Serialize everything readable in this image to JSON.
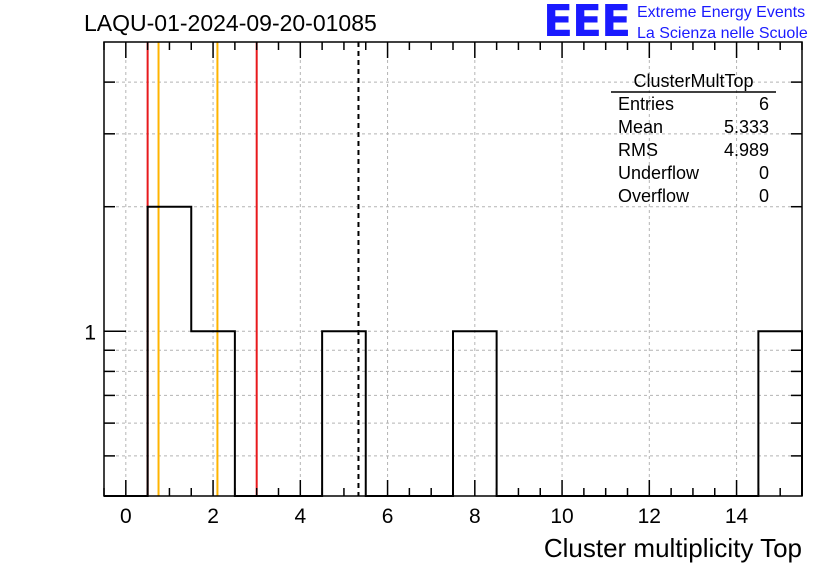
{
  "header": {
    "title": "LAQU-01-2024-09-20-01085",
    "logo_text": "EEE",
    "logo_line1": "Extreme Energy Events",
    "logo_line2": "La Scienza nelle Scuole"
  },
  "stats_box": {
    "name": "ClusterMultTop",
    "rows": [
      {
        "label": "Entries",
        "value": "6"
      },
      {
        "label": "Mean",
        "value": "5.333"
      },
      {
        "label": "RMS",
        "value": "4.989"
      },
      {
        "label": "Underflow",
        "value": "0"
      },
      {
        "label": "Overflow",
        "value": "0"
      }
    ]
  },
  "colors": {
    "red": "#e8191c",
    "orange": "#ffb400",
    "grid": "#b4b4b4",
    "hist": "#000000"
  },
  "chart_data": {
    "type": "histogram",
    "title": "LAQU-01-2024-09-20-01085",
    "xlabel": "Cluster multiplicity Top",
    "ylabel": "",
    "xlim": [
      -0.5,
      15.5
    ],
    "ylim": [
      0.4,
      5
    ],
    "yscale": "log",
    "bin_width": 1,
    "bin_centers": [
      0,
      1,
      2,
      3,
      4,
      5,
      6,
      7,
      8,
      9,
      10,
      11,
      12,
      13,
      14,
      15
    ],
    "counts": [
      0,
      2,
      1,
      0,
      0,
      1,
      0,
      0,
      1,
      0,
      0,
      0,
      0,
      0,
      0,
      1
    ],
    "x_ticks": [
      0,
      2,
      4,
      6,
      8,
      10,
      12,
      14
    ],
    "x_tick_labels": [
      "0",
      "2",
      "4",
      "6",
      "8",
      "10",
      "12",
      "14"
    ],
    "y_major_ticks": [
      1
    ],
    "y_major_tick_labels": [
      "1"
    ],
    "y_minor_ticks": [
      0.5,
      0.6,
      0.7,
      0.8,
      0.9,
      2,
      3,
      4
    ],
    "grid": true,
    "vertical_lines": [
      {
        "x": 0.5,
        "color": "red",
        "style": "solid"
      },
      {
        "x": 0.75,
        "color": "orange",
        "style": "solid"
      },
      {
        "x": 2.1,
        "color": "orange",
        "style": "solid"
      },
      {
        "x": 3.0,
        "color": "red",
        "style": "solid"
      },
      {
        "x": 5.333,
        "color": "black",
        "style": "dashed"
      }
    ]
  }
}
